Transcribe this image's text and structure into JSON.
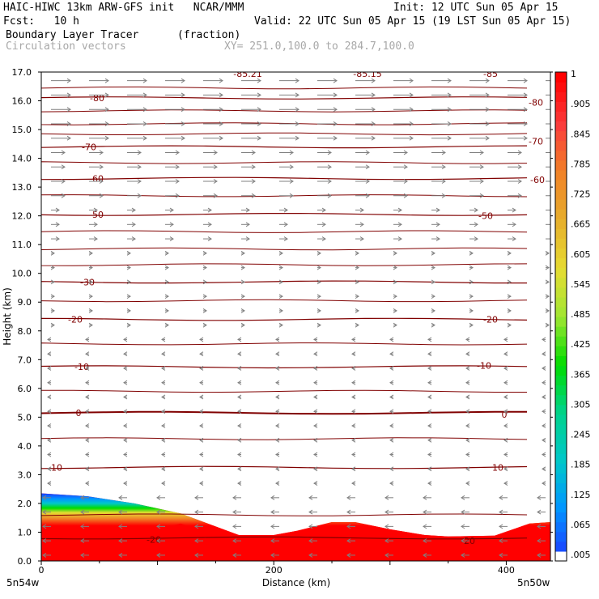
{
  "header": {
    "line1_left": "HAIC-HIWC 13km ARW-GFS init   NCAR/MMM",
    "line1_right": "Init: 12 UTC Sun 05 Apr 15",
    "line2_left": "Fcst:   10 h",
    "line2_right": "Valid: 22 UTC Sun 05 Apr 15 (19 LST Sun 05 Apr 15)",
    "line3_left": "Boundary Layer Tracer",
    "line3_unit": "(fraction)",
    "line4_left": "Circulation vectors",
    "line4_xy": "XY= 251.0,100.0 to 284.7,100.0"
  },
  "axes": {
    "ylabel": "Height (km)",
    "xlabel": "Distance (km)",
    "x_left_label": "5n54w",
    "x_right_label": "5n50w"
  },
  "colors": {
    "contour": "#800000",
    "vector": "#808080"
  },
  "chart_data": {
    "type": "heatmap",
    "xlabel": "Distance (km)",
    "ylabel": "Height (km)",
    "xlim": [
      0,
      438
    ],
    "ylim": [
      0,
      17
    ],
    "xticks": [
      0,
      200,
      400
    ],
    "yticks": [
      "0.0",
      "1.0",
      "2.0",
      "3.0",
      "4.0",
      "5.0",
      "6.0",
      "7.0",
      "8.0",
      "9.0",
      "10.0",
      "11.0",
      "12.0",
      "13.0",
      "14.0",
      "15.0",
      "16.0",
      "17.0"
    ],
    "colorbar": {
      "labels": [
        ".005",
        ".065",
        ".125",
        ".185",
        ".245",
        ".305",
        ".365",
        ".425",
        ".485",
        ".545",
        ".605",
        ".665",
        ".725",
        ".785",
        ".845",
        ".905",
        "1"
      ],
      "colors": [
        "#ffffff",
        "#1e3cff",
        "#0096ff",
        "#00c8c8",
        "#00d28c",
        "#00dc00",
        "#a0e632",
        "#e6dc32",
        "#e6af2d",
        "#f08228",
        "#fa3c3c",
        "#ff0000"
      ]
    },
    "tracer_top_km": [
      [
        0,
        2.35
      ],
      [
        40,
        2.25
      ],
      [
        80,
        2.0
      ],
      [
        120,
        1.65
      ],
      [
        150,
        1.2
      ],
      [
        170,
        0.9
      ],
      [
        200,
        0.9
      ],
      [
        220,
        1.05
      ],
      [
        250,
        1.35
      ],
      [
        270,
        1.35
      ],
      [
        300,
        1.1
      ],
      [
        330,
        0.9
      ],
      [
        350,
        0.85
      ],
      [
        390,
        0.88
      ],
      [
        420,
        1.3
      ],
      [
        438,
        1.35
      ]
    ],
    "temperature_contours": [
      {
        "label": "-20",
        "note": "lower level",
        "y_km": 0.8
      },
      {
        "label": "10",
        "y_km": 3.25
      },
      {
        "label": "0",
        "y_km": 5.15
      },
      {
        "label": "-10",
        "y_km": 6.75
      },
      {
        "label": "-20",
        "y_km": 8.4
      },
      {
        "label": "-30",
        "y_km": 9.7
      },
      {
        "label": "-50",
        "y_km": 12.05
      },
      {
        "label": "-60",
        "y_km": 13.3
      },
      {
        "label": "-70",
        "y_km": 14.4
      },
      {
        "label": "-80",
        "y_km": 16.1
      },
      {
        "label": "-85.21",
        "y_km": 17.0
      },
      {
        "label": "-85.15",
        "y_km": 17.0
      },
      {
        "label": "-85",
        "y_km": 17.0
      }
    ]
  }
}
